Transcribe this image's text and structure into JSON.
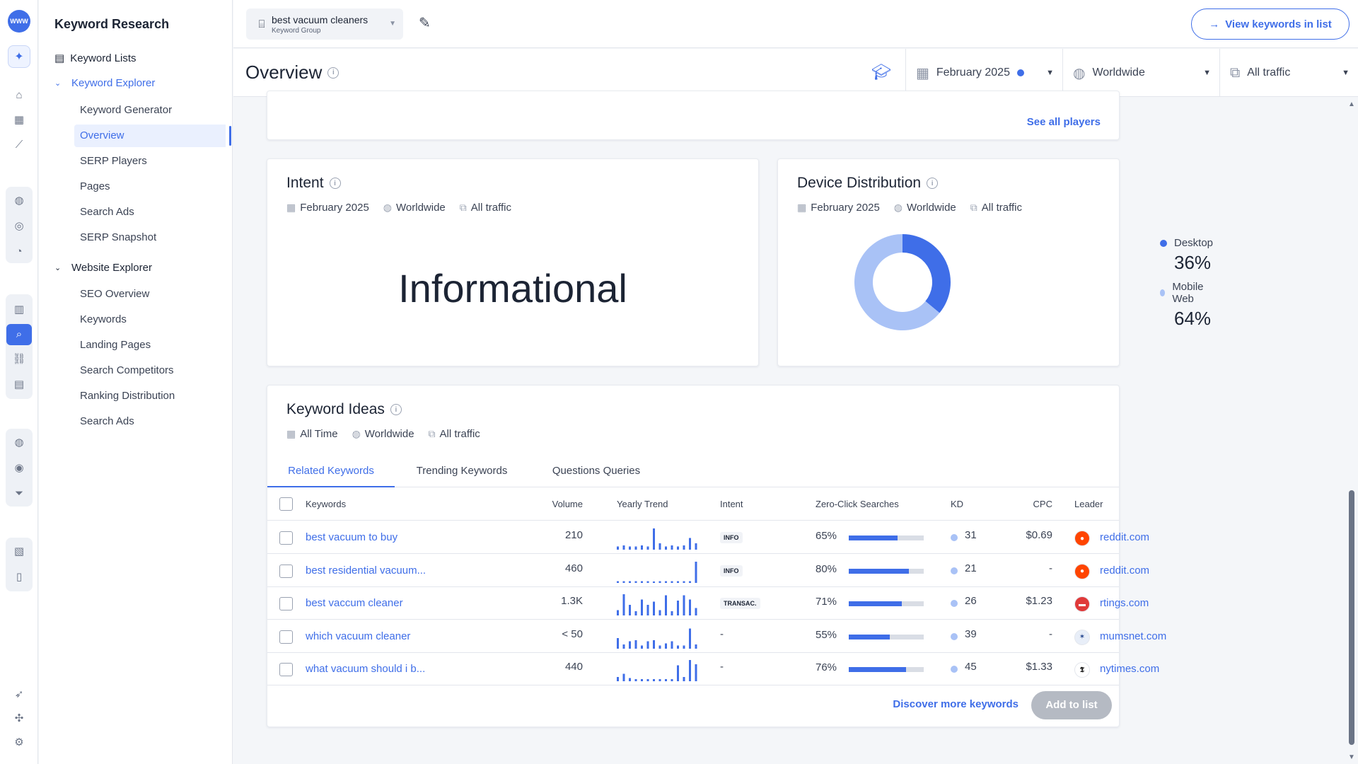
{
  "app": {
    "logo_text": "WWW"
  },
  "nav": {
    "title": "Keyword Research",
    "keyword_lists": "Keyword Lists",
    "keyword_explorer": "Keyword Explorer",
    "keyword_explorer_items": [
      "Keyword Generator",
      "Overview",
      "SERP Players",
      "Pages",
      "Search Ads",
      "SERP Snapshot"
    ],
    "website_explorer": "Website Explorer",
    "website_explorer_items": [
      "SEO Overview",
      "Keywords",
      "Landing Pages",
      "Search Competitors",
      "Ranking Distribution",
      "Search Ads"
    ]
  },
  "topbar": {
    "group_name": "best vacuum cleaners",
    "group_label": "Keyword Group",
    "view_button": "View keywords in list"
  },
  "overview": {
    "title": "Overview",
    "date_filter": "February 2025",
    "region_filter": "Worldwide",
    "traffic_filter": "All traffic"
  },
  "players_card": {
    "see_all": "See all players"
  },
  "intent_card": {
    "title": "Intent",
    "date": "February 2025",
    "region": "Worldwide",
    "traffic": "All traffic",
    "value": "Informational"
  },
  "device_card": {
    "title": "Device Distribution",
    "date": "February 2025",
    "region": "Worldwide",
    "traffic": "All traffic",
    "legend": [
      {
        "label": "Desktop",
        "value": "36%",
        "color": "#3f6ee8"
      },
      {
        "label": "Mobile Web",
        "value": "64%",
        "color": "#a9c2f6"
      }
    ]
  },
  "chart_data": {
    "type": "pie",
    "categories": [
      "Desktop",
      "Mobile Web"
    ],
    "values": [
      36,
      64
    ],
    "colors": [
      "#3f6ee8",
      "#a9c2f6"
    ]
  },
  "ideas_card": {
    "title": "Keyword Ideas",
    "date": "All Time",
    "region": "Worldwide",
    "traffic": "All traffic",
    "tabs": [
      "Related Keywords",
      "Trending Keywords",
      "Questions Queries"
    ],
    "columns": [
      "Keywords",
      "Volume",
      "Yearly Trend",
      "Intent",
      "Zero-Click Searches",
      "KD",
      "CPC",
      "Leader"
    ],
    "rows": [
      {
        "keyword": "best vacuum to buy",
        "volume": "210",
        "trend": [
          0.15,
          0.2,
          0.15,
          0.15,
          0.2,
          0.15,
          1,
          0.3,
          0.15,
          0.2,
          0.15,
          0.2,
          0.55,
          0.3
        ],
        "intent": "INFO",
        "zero_click": "65%",
        "zero_pct": 65,
        "kd": "31",
        "cpc": "$0.69",
        "leader": "reddit.com",
        "leader_icon": "reddit-icon"
      },
      {
        "keyword": "best residential vacuum...",
        "volume": "460",
        "trend": [
          0.08,
          0.08,
          0.08,
          0.08,
          0.08,
          0.08,
          0,
          0.08,
          0.08,
          0.08,
          0.08,
          0.08,
          0.08,
          1
        ],
        "intent": "INFO",
        "zero_click": "80%",
        "zero_pct": 80,
        "kd": "21",
        "cpc": "-",
        "leader": "reddit.com",
        "leader_icon": "reddit-icon"
      },
      {
        "keyword": "best vaccum cleaner",
        "volume": "1.3K",
        "trend": [
          0.25,
          1,
          0.5,
          0.2,
          0.75,
          0.5,
          0.65,
          0.25,
          0.95,
          0.2,
          0.7,
          0.95,
          0.75,
          0.35
        ],
        "intent": "TRANSAC.",
        "zero_click": "71%",
        "zero_pct": 71,
        "kd": "26",
        "cpc": "$1.23",
        "leader": "rtings.com",
        "leader_icon": "rtings-icon"
      },
      {
        "keyword": "which vacuum cleaner",
        "volume": "< 50",
        "trend": [
          0.5,
          0.2,
          0.35,
          0.4,
          0.15,
          0.35,
          0.4,
          0.15,
          0.25,
          0.35,
          0.15,
          0.15,
          0.95,
          0.2
        ],
        "intent": "-",
        "zero_click": "55%",
        "zero_pct": 55,
        "kd": "39",
        "cpc": "-",
        "leader": "mumsnet.com",
        "leader_icon": "mumsnet-icon"
      },
      {
        "keyword": "what vacuum should i b...",
        "volume": "440",
        "trend": [
          0.2,
          0.35,
          0.15,
          0.1,
          0.1,
          0.1,
          0.1,
          0.1,
          0.1,
          0.1,
          0.75,
          0.2,
          1,
          0.8
        ],
        "intent": "-",
        "zero_click": "76%",
        "zero_pct": 76,
        "kd": "45",
        "cpc": "$1.33",
        "leader": "nytimes.com",
        "leader_icon": "nytimes-icon"
      }
    ],
    "discover": "Discover more keywords",
    "add_to_list": "Add to list"
  }
}
